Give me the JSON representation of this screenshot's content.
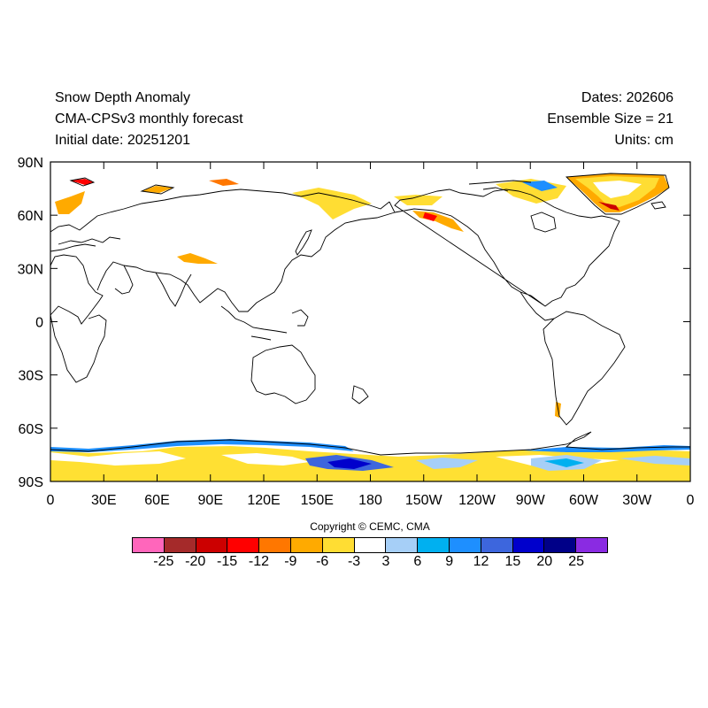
{
  "header": {
    "title": "Snow Depth Anomaly",
    "model": "CMA-CPSv3 monthly forecast",
    "initial": "Initial date: 20251201",
    "dates": "Dates: 202606",
    "ensemble": "Ensemble Size = 21",
    "units": "Units: cm"
  },
  "map": {
    "y_ticks": [
      "90N",
      "60N",
      "30N",
      "0",
      "30S",
      "60S",
      "90S"
    ],
    "x_ticks": [
      "0",
      "30E",
      "60E",
      "90E",
      "120E",
      "150E",
      "180",
      "150W",
      "120W",
      "90W",
      "60W",
      "30W",
      "0"
    ]
  },
  "copyright": "Copyright © CEMC, CMA",
  "colorbar": {
    "colors": [
      "#ff66bb",
      "#a52a2a",
      "#cc0000",
      "#ff0000",
      "#ff7700",
      "#ffaa00",
      "#ffdd33",
      "#ffffff",
      "#a6cff7",
      "#00b0f0",
      "#1e8fff",
      "#3d66dd",
      "#0000cc",
      "#000088",
      "#8a2be2"
    ],
    "labels": [
      "-25",
      "-20",
      "-15",
      "-12",
      "-9",
      "-6",
      "-3",
      "3",
      "6",
      "9",
      "12",
      "15",
      "20",
      "25"
    ]
  }
}
